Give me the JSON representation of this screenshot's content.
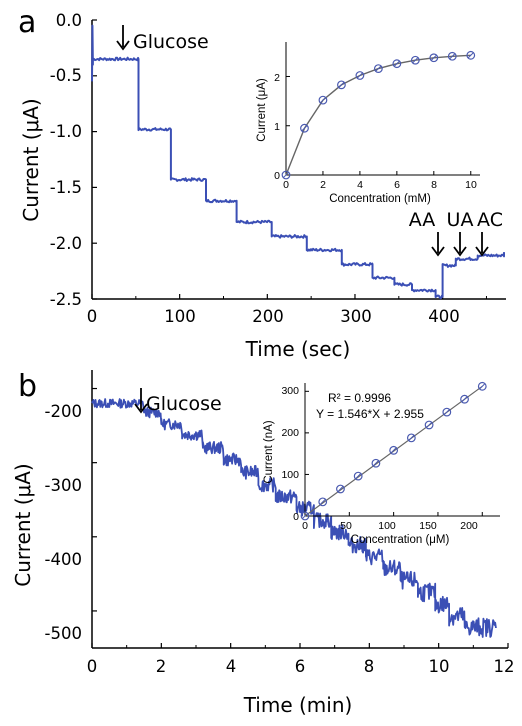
{
  "colors": {
    "trace": "#3b4fb5",
    "inset_line": "#666666",
    "marker": "#4a5ab0",
    "axis": "#000000"
  },
  "panels": [
    {
      "letter": "a"
    },
    {
      "letter": "b"
    }
  ],
  "chart_data": [
    {
      "panel": "a",
      "type": "line",
      "xlabel": "Time (sec)",
      "ylabel": "Current (μA)",
      "xlim": [
        0,
        470
      ],
      "ylim": [
        -2.5,
        0.0
      ],
      "xticks": [
        "0",
        "100",
        "200",
        "300",
        "400"
      ],
      "yticks": [
        "0.0",
        "-0.5",
        "-1.0",
        "-1.5",
        "-2.0",
        "-2.5"
      ],
      "series": [
        {
          "steps": [
            [
              0,
              -0.35
            ],
            [
              53,
              -0.98
            ],
            [
              90,
              -1.43
            ],
            [
              130,
              -1.62
            ],
            [
              165,
              -1.81
            ],
            [
              205,
              -1.94
            ],
            [
              245,
              -2.06
            ],
            [
              285,
              -2.19
            ],
            [
              320,
              -2.31
            ],
            [
              345,
              -2.37
            ],
            [
              365,
              -2.42
            ],
            [
              392,
              -2.48
            ],
            [
              400,
              -2.2
            ],
            [
              415,
              -2.14
            ],
            [
              440,
              -2.11
            ],
            [
              470,
              -2.08
            ]
          ]
        }
      ],
      "annotations": [
        {
          "text": "Glucose",
          "x": 35
        },
        {
          "text": "AA",
          "x": 398
        },
        {
          "text": "UA",
          "x": 422
        },
        {
          "text": "AC",
          "x": 446
        }
      ],
      "inset": {
        "type": "line",
        "xlabel": "Concentration (mM)",
        "ylabel": "Current (μA)",
        "xlim": [
          0,
          10.5
        ],
        "ylim": [
          0,
          2.7
        ],
        "xticks": [
          "0",
          "2",
          "4",
          "6",
          "8",
          "10"
        ],
        "yticks": [
          "0",
          "1",
          "2"
        ],
        "x": [
          0,
          1,
          2,
          3,
          4,
          5,
          6,
          7,
          8,
          9,
          10
        ],
        "y": [
          0,
          0.95,
          1.52,
          1.83,
          2.02,
          2.16,
          2.26,
          2.33,
          2.38,
          2.41,
          2.43
        ]
      }
    },
    {
      "panel": "b",
      "type": "line",
      "xlabel": "Time (min)",
      "ylabel": "Current (μA)",
      "xlim": [
        0,
        12
      ],
      "ylim": [
        -550,
        -175
      ],
      "xticks": [
        "0",
        "2",
        "4",
        "6",
        "8",
        "10",
        "12"
      ],
      "yticks": [
        "-200",
        "-300",
        "-400",
        "-500"
      ],
      "series": [
        {
          "steps": [
            [
              0,
              -220
            ],
            [
              1.5,
              -232
            ],
            [
              2.0,
              -248
            ],
            [
              2.6,
              -262
            ],
            [
              3.2,
              -280
            ],
            [
              3.8,
              -296
            ],
            [
              4.3,
              -313
            ],
            [
              4.8,
              -330
            ],
            [
              5.3,
              -346
            ],
            [
              5.9,
              -362
            ],
            [
              6.4,
              -378
            ],
            [
              6.9,
              -394
            ],
            [
              7.4,
              -411
            ],
            [
              7.9,
              -427
            ],
            [
              8.4,
              -443
            ],
            [
              8.9,
              -459
            ],
            [
              9.4,
              -475
            ],
            [
              9.9,
              -491
            ],
            [
              10.3,
              -507
            ],
            [
              10.75,
              -522
            ],
            [
              11.65,
              -523
            ]
          ]
        }
      ],
      "annotations": [
        {
          "text": "Glucose",
          "x": 1.35
        }
      ],
      "inset": {
        "type": "scatter",
        "xlabel": "Concentration (μM)",
        "ylabel": "Current (nA)",
        "xlim": [
          0,
          220
        ],
        "ylim": [
          0,
          320
        ],
        "xticks": [
          "0",
          "50",
          "100",
          "150",
          "200"
        ],
        "yticks": [
          "0",
          "100",
          "200",
          "300"
        ],
        "x": [
          0,
          20,
          40,
          60,
          80,
          100,
          120,
          140,
          160,
          180,
          200
        ],
        "y": [
          0,
          34,
          65,
          96,
          127,
          158,
          188,
          219,
          250,
          281,
          312
        ],
        "fit_r2": "R² = 0.9996",
        "fit_eq": "Y = 1.546*X + 2.955"
      }
    }
  ]
}
